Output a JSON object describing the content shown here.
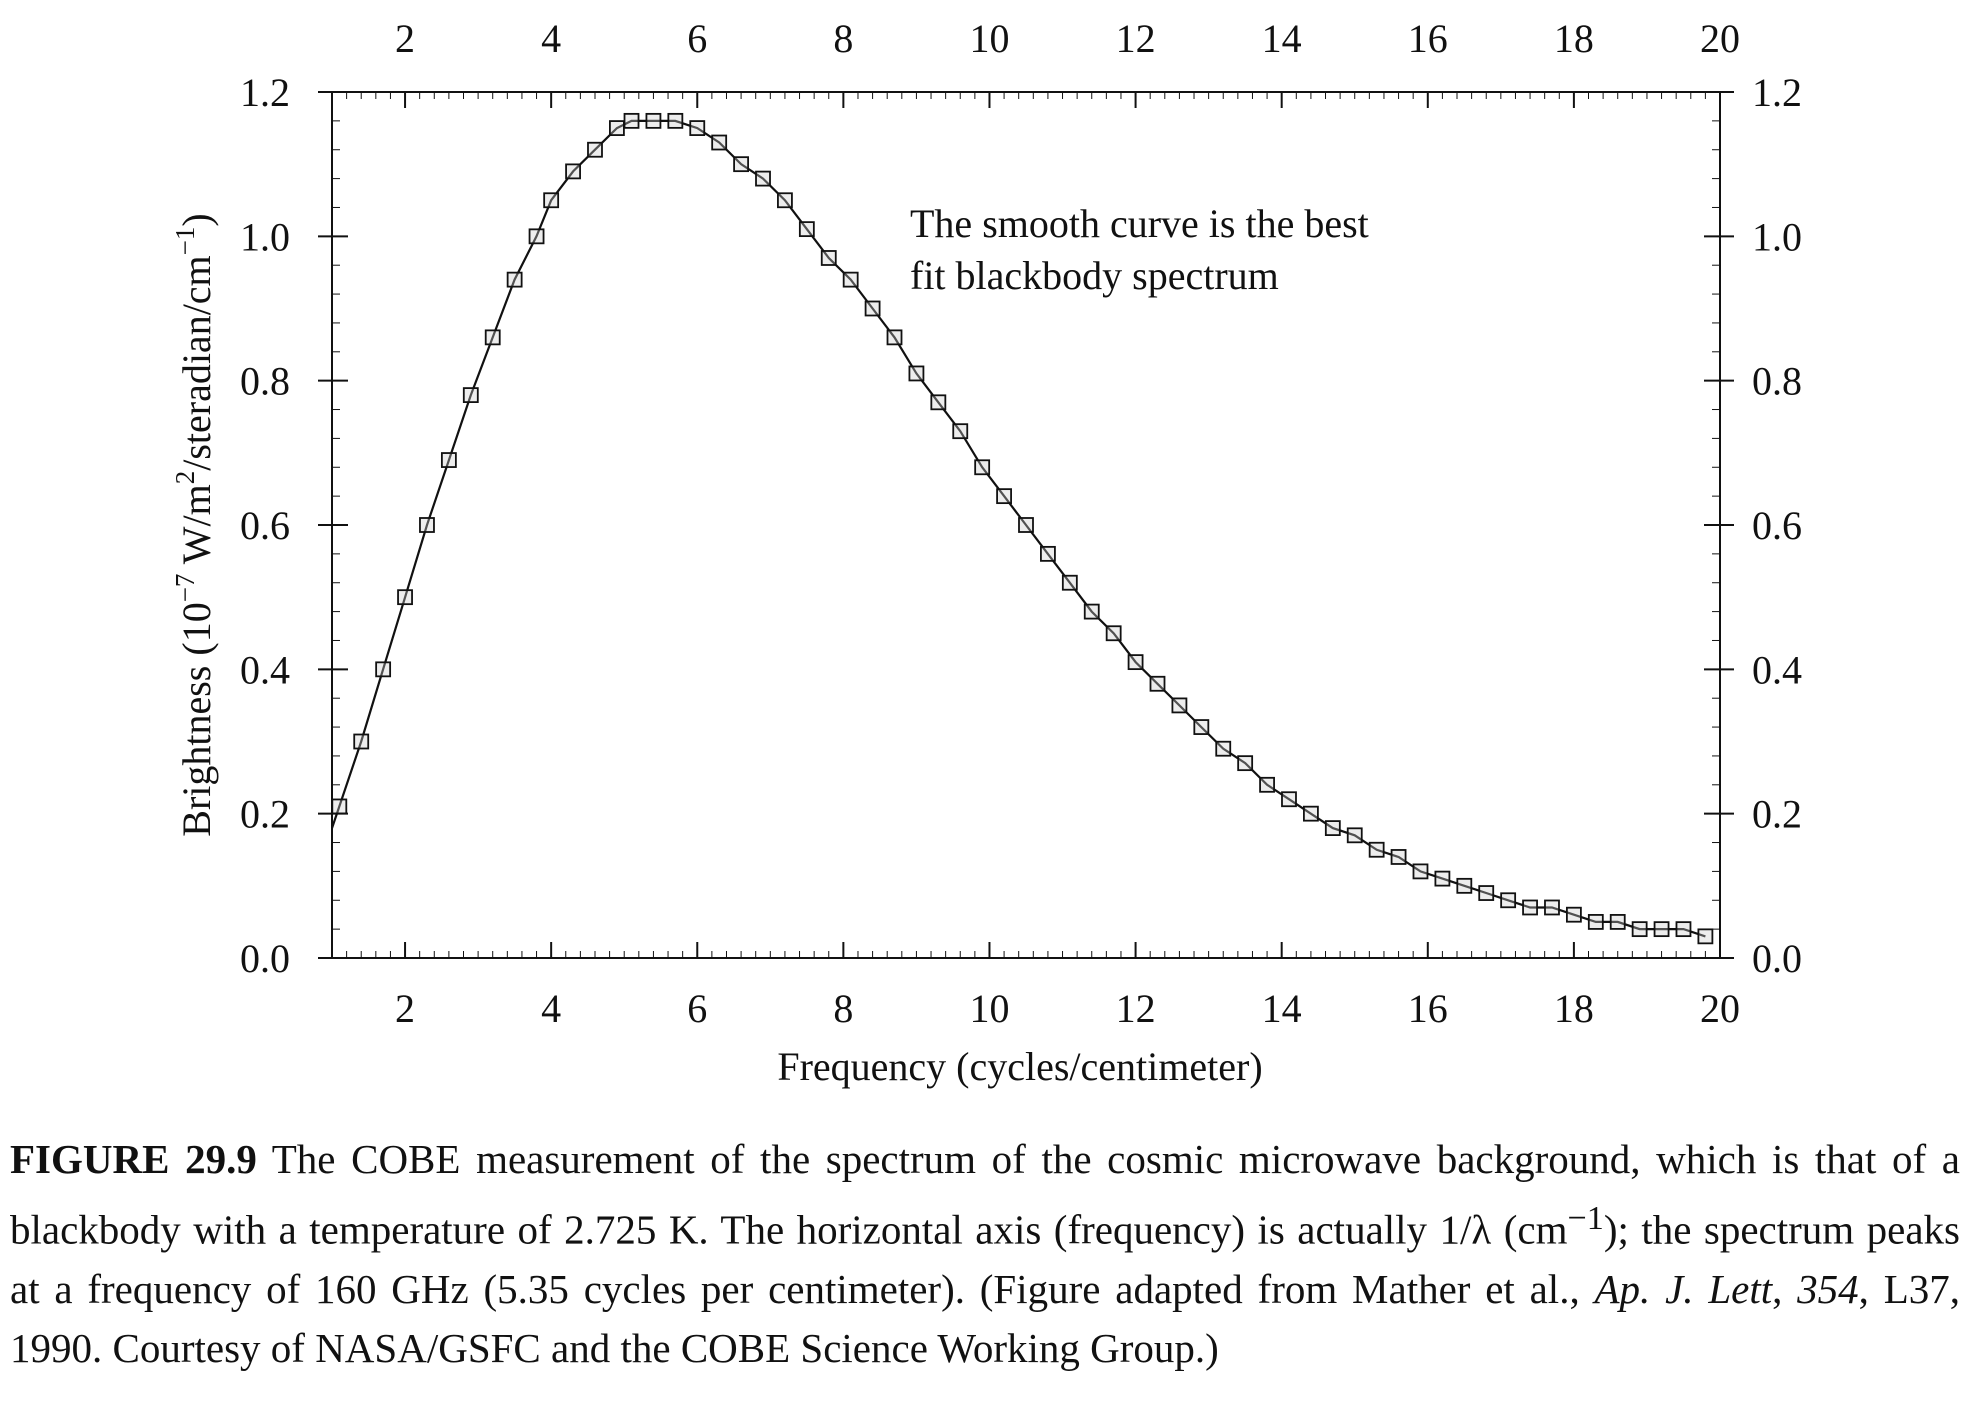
{
  "chart_data": {
    "type": "scatter",
    "xlabel": "Frequency (cycles/centimeter)",
    "ylabel_parts": [
      "Brightness (10",
      "−7",
      " W/m",
      "2",
      "/steradian/cm",
      "−1",
      ")"
    ],
    "xlim": [
      1,
      20
    ],
    "ylim": [
      0.0,
      1.2
    ],
    "x_ticks": [
      2,
      4,
      6,
      8,
      10,
      12,
      14,
      16,
      18,
      20
    ],
    "y_ticks": [
      "0.0",
      "0.2",
      "0.4",
      "0.6",
      "0.8",
      "1.0",
      "1.2"
    ],
    "annotation": [
      "The smooth curve is the best",
      "fit blackbody spectrum"
    ],
    "series": [
      {
        "marker": "open-square",
        "x": [
          1.1,
          1.4,
          1.7,
          2.0,
          2.3,
          2.6,
          2.9,
          3.2,
          3.5,
          3.8,
          4.0,
          4.3,
          4.6,
          4.9,
          5.1,
          5.4,
          5.7,
          6.0,
          6.3,
          6.6,
          6.9,
          7.2,
          7.5,
          7.8,
          8.1,
          8.4,
          8.7,
          9.0,
          9.3,
          9.6,
          9.9,
          10.2,
          10.5,
          10.8,
          11.1,
          11.4,
          11.7,
          12.0,
          12.3,
          12.6,
          12.9,
          13.2,
          13.5,
          13.8,
          14.1,
          14.4,
          14.7,
          15.0,
          15.3,
          15.6,
          15.9,
          16.2,
          16.5,
          16.8,
          17.1,
          17.4,
          17.7,
          18.0,
          18.3,
          18.6,
          18.9,
          19.2,
          19.5,
          19.8
        ],
        "y": [
          0.21,
          0.3,
          0.4,
          0.5,
          0.6,
          0.69,
          0.78,
          0.86,
          0.94,
          1.0,
          1.05,
          1.09,
          1.12,
          1.15,
          1.16,
          1.16,
          1.16,
          1.15,
          1.13,
          1.1,
          1.08,
          1.05,
          1.01,
          0.97,
          0.94,
          0.9,
          0.86,
          0.81,
          0.77,
          0.73,
          0.68,
          0.64,
          0.6,
          0.56,
          0.52,
          0.48,
          0.45,
          0.41,
          0.38,
          0.35,
          0.32,
          0.29,
          0.27,
          0.24,
          0.22,
          0.2,
          0.18,
          0.17,
          0.15,
          0.14,
          0.12,
          0.11,
          0.1,
          0.09,
          0.08,
          0.07,
          0.07,
          0.06,
          0.05,
          0.05,
          0.04,
          0.04,
          0.04,
          0.03
        ]
      }
    ],
    "curve": {
      "x": [
        1.0,
        1.1,
        1.4,
        1.7,
        2.0,
        2.3,
        2.6,
        2.9,
        3.2,
        3.5,
        3.8,
        4.0,
        4.3,
        4.6,
        4.9,
        5.1,
        5.4,
        5.7,
        6.0,
        6.3,
        6.6,
        6.9,
        7.2,
        7.5,
        7.8,
        8.1,
        8.4,
        8.7,
        9.0,
        9.3,
        9.6,
        9.9,
        10.2,
        10.5,
        10.8,
        11.1,
        11.4,
        11.7,
        12.0,
        12.3,
        12.6,
        12.9,
        13.2,
        13.5,
        13.8,
        14.1,
        14.4,
        14.7,
        15.0,
        15.3,
        15.6,
        15.9,
        16.2,
        16.5,
        16.8,
        17.1,
        17.4,
        17.7,
        18.0,
        18.3,
        18.6,
        18.9,
        19.2,
        19.5,
        19.8
      ],
      "y": [
        0.18,
        0.21,
        0.3,
        0.4,
        0.5,
        0.6,
        0.69,
        0.78,
        0.86,
        0.94,
        1.0,
        1.05,
        1.09,
        1.12,
        1.15,
        1.16,
        1.16,
        1.16,
        1.15,
        1.13,
        1.1,
        1.08,
        1.05,
        1.01,
        0.97,
        0.94,
        0.9,
        0.86,
        0.81,
        0.77,
        0.73,
        0.68,
        0.64,
        0.6,
        0.56,
        0.52,
        0.48,
        0.45,
        0.41,
        0.38,
        0.35,
        0.32,
        0.29,
        0.27,
        0.24,
        0.22,
        0.2,
        0.18,
        0.17,
        0.15,
        0.14,
        0.12,
        0.11,
        0.1,
        0.09,
        0.08,
        0.07,
        0.07,
        0.06,
        0.05,
        0.05,
        0.04,
        0.04,
        0.04,
        0.03
      ]
    },
    "grid": false,
    "colors": {
      "ink": "#111111",
      "marker_fill": "#cccccc"
    }
  },
  "caption": {
    "label": "FIGURE 29.9",
    "text_1": " The COBE measurement of the spectrum of the cosmic microwave background, which is that of a blackbody with a temperature of 2.725 K. The horizontal axis (frequency) is actually 1/λ (cm",
    "sup_1": "−1",
    "text_2": "); the spectrum peaks at a frequency of 160 GHz (5.35 cycles per centimeter). (Figure adapted from Mather et al., ",
    "journal": "Ap.  J.  Lett",
    "text_3": ", ",
    "volume": "354",
    "text_4": ", L37, 1990. Courtesy of NASA/GSFC and the COBE Science Working Group.)"
  }
}
